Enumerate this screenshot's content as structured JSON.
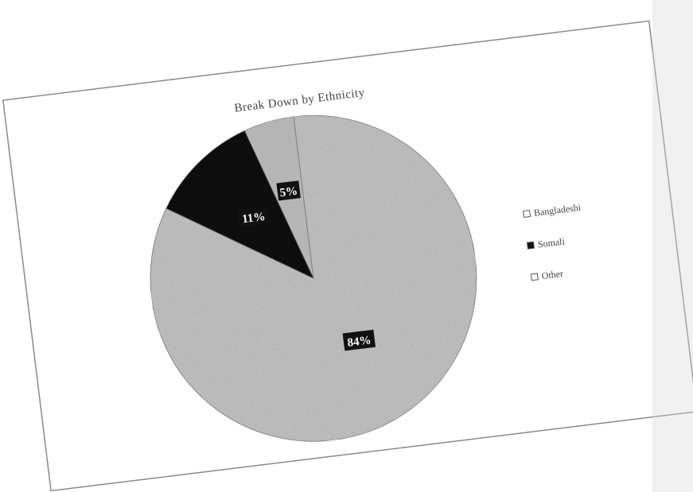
{
  "chart_data": {
    "type": "pie",
    "title": "Break Down by Ethnicity",
    "categories": [
      "Bangladeshi",
      "Somali",
      "Other"
    ],
    "values": [
      5,
      11,
      84
    ],
    "data_labels": [
      "5%",
      "11%",
      "84%"
    ],
    "legend_position": "right",
    "colors": {
      "Bangladeshi": "#bdbdbd",
      "Somali": "#111111",
      "Other": "#c2c2c2"
    }
  }
}
